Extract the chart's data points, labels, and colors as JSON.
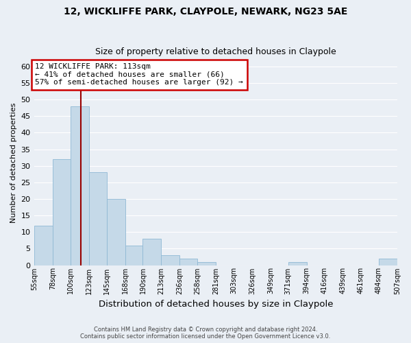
{
  "title1": "12, WICKLIFFE PARK, CLAYPOLE, NEWARK, NG23 5AE",
  "title2": "Size of property relative to detached houses in Claypole",
  "xlabel": "Distribution of detached houses by size in Claypole",
  "ylabel": "Number of detached properties",
  "bar_color": "#c5d9e8",
  "bar_edge_color": "#8fb8d4",
  "bg_color": "#eaeff5",
  "grid_color": "#ffffff",
  "bin_edges": [
    55,
    78,
    100,
    123,
    145,
    168,
    190,
    213,
    236,
    258,
    281,
    303,
    326,
    349,
    371,
    394,
    416,
    439,
    461,
    484,
    507
  ],
  "counts": [
    12,
    32,
    48,
    28,
    20,
    6,
    8,
    3,
    2,
    1,
    0,
    0,
    0,
    0,
    1,
    0,
    0,
    0,
    0,
    2
  ],
  "bin_labels": [
    "55sqm",
    "78sqm",
    "100sqm",
    "123sqm",
    "145sqm",
    "168sqm",
    "190sqm",
    "213sqm",
    "236sqm",
    "258sqm",
    "281sqm",
    "303sqm",
    "326sqm",
    "349sqm",
    "371sqm",
    "394sqm",
    "416sqm",
    "439sqm",
    "461sqm",
    "484sqm",
    "507sqm"
  ],
  "property_value": 113,
  "vline_color": "#990000",
  "annotation_box_color": "#ffffff",
  "annotation_box_edge": "#cc0000",
  "annotation_line1": "12 WICKLIFFE PARK: 113sqm",
  "annotation_line2": "← 41% of detached houses are smaller (66)",
  "annotation_line3": "57% of semi-detached houses are larger (92) →",
  "ylim": [
    0,
    62
  ],
  "yticks": [
    0,
    5,
    10,
    15,
    20,
    25,
    30,
    35,
    40,
    45,
    50,
    55,
    60
  ],
  "footer1": "Contains HM Land Registry data © Crown copyright and database right 2024.",
  "footer2": "Contains public sector information licensed under the Open Government Licence v3.0."
}
